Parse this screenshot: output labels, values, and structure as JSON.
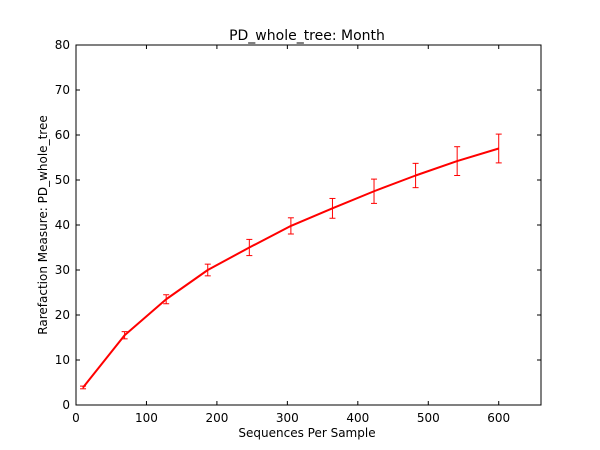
{
  "chart_data": {
    "type": "line",
    "title": "PD_whole_tree: Month",
    "xlabel": "Sequences Per Sample",
    "ylabel": "Rarefaction Measure: PD_whole_tree",
    "xlim": [
      0,
      660
    ],
    "ylim": [
      0,
      80
    ],
    "xticks": [
      0,
      100,
      200,
      300,
      400,
      500,
      600
    ],
    "yticks": [
      0,
      10,
      20,
      30,
      40,
      50,
      60,
      70,
      80
    ],
    "grid": false,
    "series": [
      {
        "color": "#ff0000",
        "x": [
          10,
          69,
          128,
          187,
          246,
          305,
          364,
          423,
          482,
          541,
          600
        ],
        "y": [
          3.9,
          15.5,
          23.5,
          30.0,
          35.0,
          39.8,
          43.7,
          47.5,
          51.0,
          54.2,
          57.0
        ],
        "error": [
          0.3,
          0.8,
          1.0,
          1.3,
          1.8,
          1.8,
          2.2,
          2.7,
          2.7,
          3.2,
          3.2
        ]
      }
    ]
  }
}
